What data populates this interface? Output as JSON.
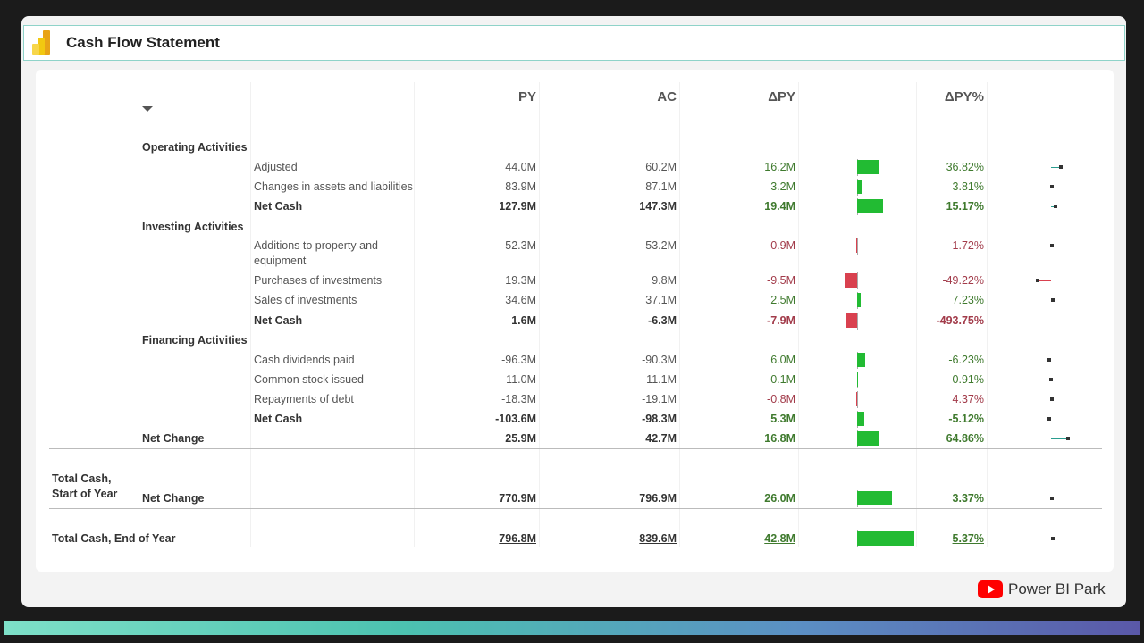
{
  "title": "Cash Flow Statement",
  "headers": {
    "py": "PY",
    "ac": "AC",
    "dpy": "ΔPY",
    "dpyp": "ΔPY%"
  },
  "colors": {
    "pos_text": "#3f7a2e",
    "neg_text": "#a23b4a",
    "pos_bar": "#22bb33",
    "neg_bar": "#d9414f",
    "pos_lol": "#2a9d8f",
    "neg_lol": "#d9414f"
  },
  "rows": [
    {
      "cat": "Operating Activities"
    },
    {
      "item": "Adjusted",
      "py": "44.0M",
      "ac": "60.2M",
      "dpy": "16.2M",
      "dpyv": 16.2,
      "dpyp": "36.82%",
      "dpypv": 36.82
    },
    {
      "item": "Changes in assets and liabilities",
      "py": "83.9M",
      "ac": "87.1M",
      "dpy": "3.2M",
      "dpyv": 3.2,
      "dpyp": "3.81%",
      "dpypv": 3.81
    },
    {
      "item": "Net Cash",
      "bold": true,
      "py": "127.9M",
      "ac": "147.3M",
      "dpy": "19.4M",
      "dpyv": 19.4,
      "dpyp": "15.17%",
      "dpypv": 15.17
    },
    {
      "cat": "Investing Activities"
    },
    {
      "item": "Additions to property and",
      "item2": "equipment",
      "py": "-52.3M",
      "ac": "-53.2M",
      "dpy": "-0.9M",
      "dpyv": -0.9,
      "dpyp": "1.72%",
      "dpypv": 1.72
    },
    {
      "item": "Purchases of investments",
      "py": "19.3M",
      "ac": "9.8M",
      "dpy": "-9.5M",
      "dpyv": -9.5,
      "dpyp": "-49.22%",
      "dpypv": -49.22
    },
    {
      "item": "Sales of investments",
      "py": "34.6M",
      "ac": "37.1M",
      "dpy": "2.5M",
      "dpyv": 2.5,
      "dpyp": "7.23%",
      "dpypv": 7.23
    },
    {
      "item": "Net Cash",
      "bold": true,
      "py": "1.6M",
      "ac": "-6.3M",
      "dpy": "-7.9M",
      "dpyv": -7.9,
      "dpyp": "-493.75%",
      "dpypv": -493.75
    },
    {
      "cat": "Financing Activities"
    },
    {
      "item": "Cash dividends paid",
      "py": "-96.3M",
      "ac": "-90.3M",
      "dpy": "6.0M",
      "dpyv": 6.0,
      "dpyp": "-6.23%",
      "dpypv": -6.23
    },
    {
      "item": "Common stock issued",
      "py": "11.0M",
      "ac": "11.1M",
      "dpy": "0.1M",
      "dpyv": 0.1,
      "dpyp": "0.91%",
      "dpypv": 0.91
    },
    {
      "item": "Repayments of debt",
      "py": "-18.3M",
      "ac": "-19.1M",
      "dpy": "-0.8M",
      "dpyv": -0.8,
      "dpyp": "4.37%",
      "dpypv": 4.37
    },
    {
      "item": "Net Cash",
      "bold": true,
      "py": "-103.6M",
      "ac": "-98.3M",
      "dpy": "5.3M",
      "dpyv": 5.3,
      "dpyp": "-5.12%",
      "dpypv": -5.12
    },
    {
      "cat": "Net Change",
      "py": "25.9M",
      "ac": "42.7M",
      "dpy": "16.8M",
      "dpyv": 16.8,
      "dpyp": "64.86%",
      "dpypv": 64.86
    },
    {
      "group": "Total Cash,",
      "group2": "Start of Year",
      "cat": "Net Change",
      "py": "770.9M",
      "ac": "796.9M",
      "dpy": "26.0M",
      "dpyv": 26.0,
      "dpyp": "3.37%",
      "dpypv": 3.37
    },
    {
      "group": "Total Cash, End of Year",
      "underline": true,
      "py": "796.8M",
      "ac": "839.6M",
      "dpy": "42.8M",
      "dpyv": 42.8,
      "dpyp": "5.37%",
      "dpypv": 5.37
    }
  ],
  "footer": {
    "brand": "Power BI Park"
  }
}
